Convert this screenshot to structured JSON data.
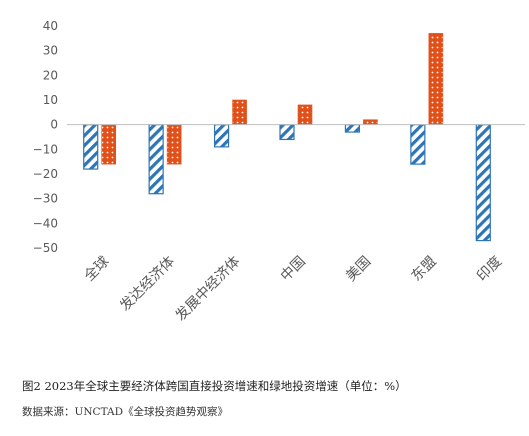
{
  "chart_data": {
    "type": "bar",
    "categories": [
      "全球",
      "发达经济体",
      "发展中经济体",
      "中国",
      "美国",
      "东盟",
      "印度"
    ],
    "series": [
      {
        "values": [
          -18,
          -28,
          -9,
          -6,
          -3,
          -16,
          -47
        ],
        "color": "#2E75B6",
        "pattern": "diagonal-stripes"
      },
      {
        "values": [
          -16,
          -16,
          10,
          8,
          2,
          37,
          0
        ],
        "color": "#E2501A",
        "pattern": "dots"
      }
    ],
    "yticks": [
      "40",
      "30",
      "20",
      "10",
      "0",
      "−10",
      "−20",
      "−30",
      "−40",
      "−50"
    ],
    "ylim": [
      -50,
      40
    ],
    "grid": false,
    "legend": "none"
  },
  "caption": "图2   2023年全球主要经济体跨国直接投资增速和绿地投资增速（单位：%）",
  "source": "数据来源：UNCTAD《全球投资趋势观察》"
}
